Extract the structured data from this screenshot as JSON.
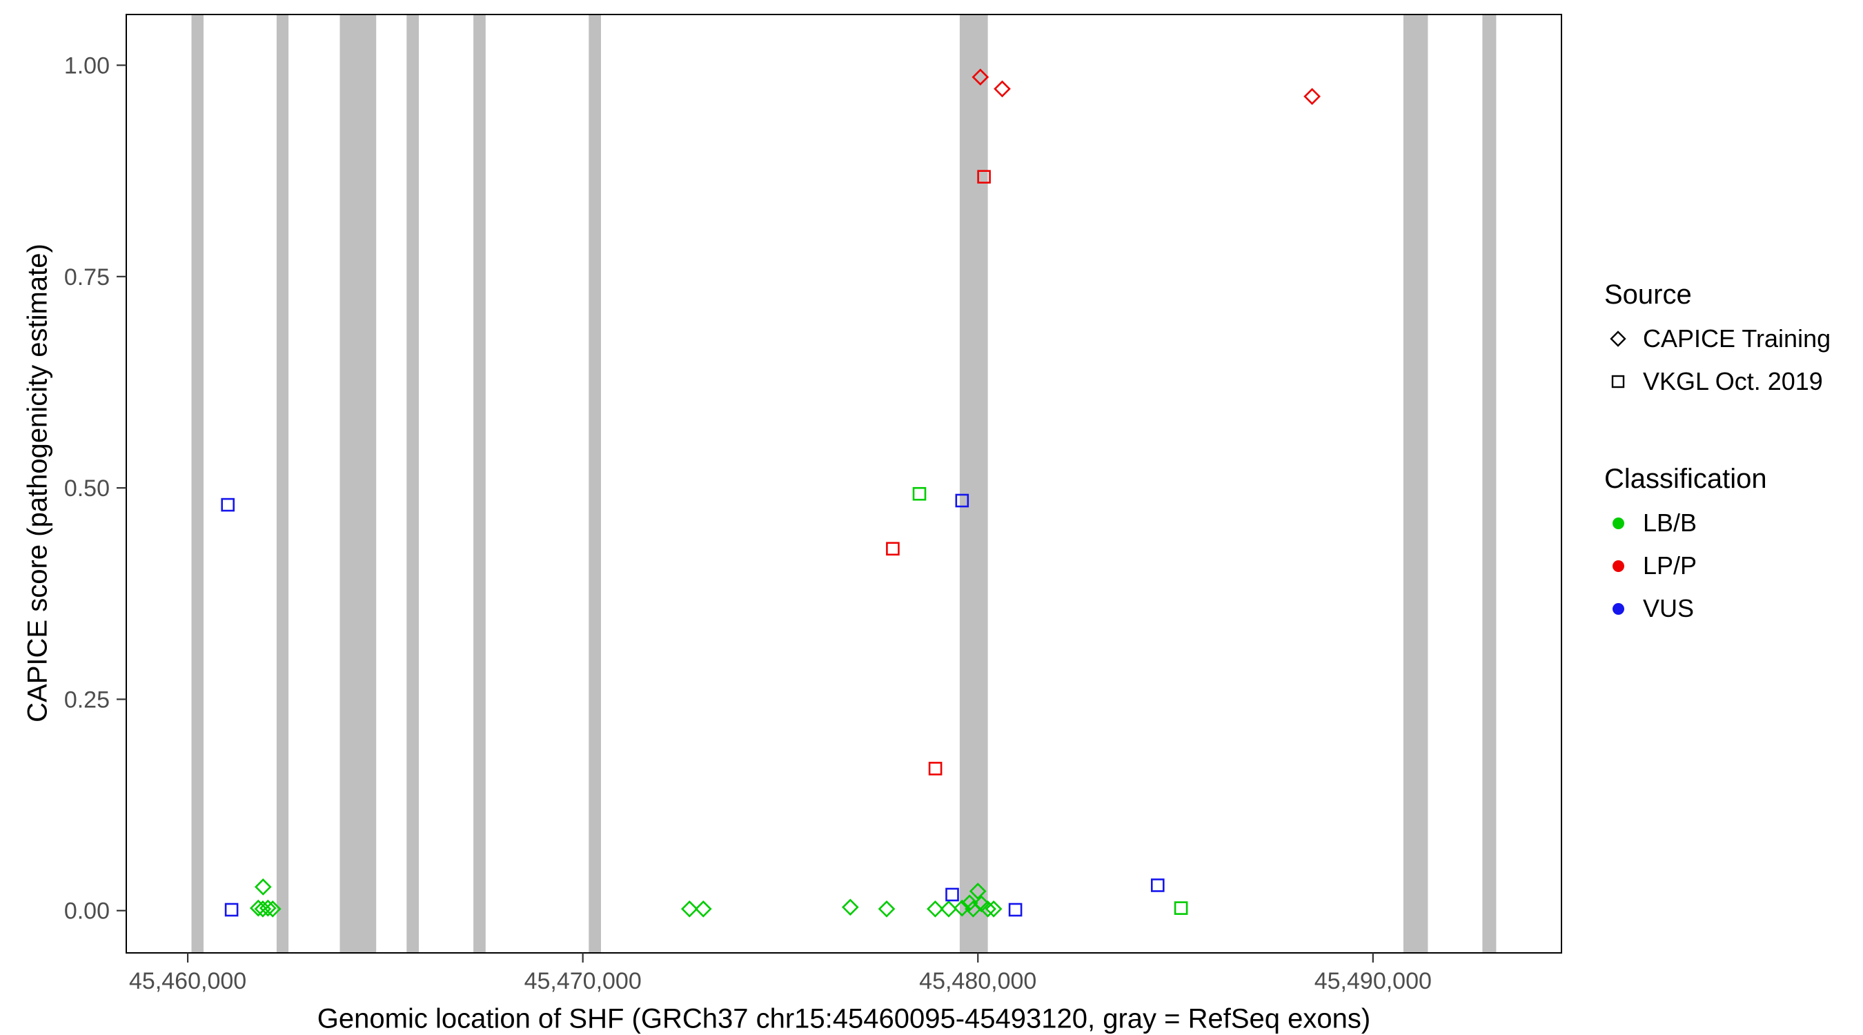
{
  "axes": {
    "x_title": "Genomic location of SHF (GRCh37 chr15:45460095-45493120, gray = RefSeq exons)",
    "y_title": "CAPICE score (pathogenicity estimate)"
  },
  "legend": {
    "source": {
      "title": "Source",
      "items": [
        {
          "label": "CAPICE Training",
          "shape": "diamond"
        },
        {
          "label": "VKGL Oct. 2019",
          "shape": "square"
        }
      ]
    },
    "classification": {
      "title": "Classification",
      "items": [
        {
          "label": "LB/B",
          "color": "#00CC00"
        },
        {
          "label": "LP/P",
          "color": "#EE0000"
        },
        {
          "label": "VUS",
          "color": "#1515EE"
        }
      ]
    }
  },
  "chart_data": {
    "type": "scatter",
    "title": "",
    "xlabel": "Genomic location of SHF (GRCh37 chr15:45460095-45493120, gray = RefSeq exons)",
    "ylabel": "CAPICE score (pathogenicity estimate)",
    "xlim": [
      45458444,
      45494771
    ],
    "ylim": [
      -0.05,
      1.06
    ],
    "grid": false,
    "legend_position": "right",
    "x_ticks": [
      {
        "value": 45460000,
        "label": "45,460,000"
      },
      {
        "value": 45470000,
        "label": "45,470,000"
      },
      {
        "value": 45480000,
        "label": "45,480,000"
      },
      {
        "value": 45490000,
        "label": "45,490,000"
      }
    ],
    "y_ticks": [
      {
        "value": 0.0,
        "label": "0.00"
      },
      {
        "value": 0.25,
        "label": "0.25"
      },
      {
        "value": 0.5,
        "label": "0.50"
      },
      {
        "value": 0.75,
        "label": "0.75"
      },
      {
        "value": 1.0,
        "label": "1.00"
      }
    ],
    "exon_color": "#BFBFBF",
    "exons": [
      [
        45460095,
        45460400
      ],
      [
        45462250,
        45462550
      ],
      [
        45463850,
        45464770
      ],
      [
        45465540,
        45465850
      ],
      [
        45467230,
        45467540
      ],
      [
        45470150,
        45470460
      ],
      [
        45479540,
        45480250
      ],
      [
        45490770,
        45491390
      ],
      [
        45492770,
        45493120
      ]
    ],
    "class_colors": {
      "LB/B": "#00CC00",
      "LP/P": "#EE0000",
      "VUS": "#1515EE"
    },
    "series": [
      {
        "name": "CAPICE Training",
        "shape": "diamond",
        "points": [
          {
            "x": 45480062,
            "y": 0.986,
            "class": "LP/P"
          },
          {
            "x": 45480615,
            "y": 0.972,
            "class": "LP/P"
          },
          {
            "x": 45488460,
            "y": 0.963,
            "class": "LP/P"
          },
          {
            "x": 45461908,
            "y": 0.028,
            "class": "LB/B"
          },
          {
            "x": 45461785,
            "y": 0.003,
            "class": "LB/B"
          },
          {
            "x": 45461900,
            "y": 0.002,
            "class": "LB/B"
          },
          {
            "x": 45462030,
            "y": 0.003,
            "class": "LB/B"
          },
          {
            "x": 45462150,
            "y": 0.002,
            "class": "LB/B"
          },
          {
            "x": 45472700,
            "y": 0.002,
            "class": "LB/B"
          },
          {
            "x": 45473050,
            "y": 0.002,
            "class": "LB/B"
          },
          {
            "x": 45476770,
            "y": 0.004,
            "class": "LB/B"
          },
          {
            "x": 45477690,
            "y": 0.002,
            "class": "LB/B"
          },
          {
            "x": 45478920,
            "y": 0.002,
            "class": "LB/B"
          },
          {
            "x": 45479260,
            "y": 0.002,
            "class": "LB/B"
          },
          {
            "x": 45479600,
            "y": 0.003,
            "class": "LB/B"
          },
          {
            "x": 45479790,
            "y": 0.009,
            "class": "LB/B"
          },
          {
            "x": 45479880,
            "y": 0.002,
            "class": "LB/B"
          },
          {
            "x": 45480000,
            "y": 0.023,
            "class": "LB/B"
          },
          {
            "x": 45480090,
            "y": 0.008,
            "class": "LB/B"
          },
          {
            "x": 45480250,
            "y": 0.002,
            "class": "LB/B"
          },
          {
            "x": 45480400,
            "y": 0.002,
            "class": "LB/B"
          }
        ]
      },
      {
        "name": "VKGL Oct. 2019",
        "shape": "square",
        "points": [
          {
            "x": 45480154,
            "y": 0.868,
            "class": "LP/P"
          },
          {
            "x": 45477846,
            "y": 0.428,
            "class": "LP/P"
          },
          {
            "x": 45478923,
            "y": 0.168,
            "class": "LP/P"
          },
          {
            "x": 45478520,
            "y": 0.493,
            "class": "LB/B"
          },
          {
            "x": 45485140,
            "y": 0.003,
            "class": "LB/B"
          },
          {
            "x": 45461015,
            "y": 0.48,
            "class": "VUS"
          },
          {
            "x": 45479600,
            "y": 0.485,
            "class": "VUS"
          },
          {
            "x": 45461110,
            "y": 0.001,
            "class": "VUS"
          },
          {
            "x": 45479350,
            "y": 0.019,
            "class": "VUS"
          },
          {
            "x": 45480950,
            "y": 0.001,
            "class": "VUS"
          },
          {
            "x": 45484550,
            "y": 0.03,
            "class": "VUS"
          }
        ]
      }
    ]
  }
}
